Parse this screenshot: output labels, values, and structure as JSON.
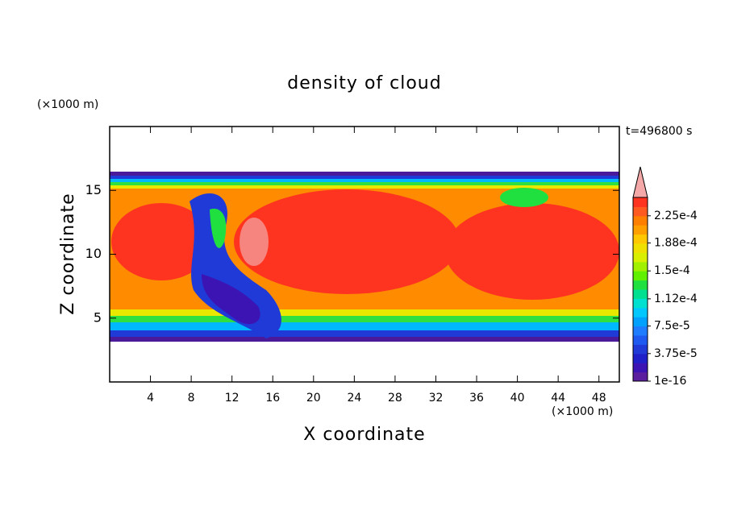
{
  "chart_data": {
    "type": "contour",
    "title": "density of cloud",
    "subtitle": "t=496800 s",
    "x_label": "X coordinate",
    "y_label": "Z coordinate",
    "x_unit": "(×1000 m)",
    "y_unit": "(×1000 m)",
    "xlim": [
      0,
      50
    ],
    "xticks": [
      4,
      8,
      12,
      16,
      20,
      24,
      28,
      32,
      36,
      40,
      44,
      48
    ],
    "ylim": [
      0,
      20
    ],
    "yticks": [
      5,
      10,
      15
    ],
    "colorbar": {
      "range": [
        0,
        0.00025
      ],
      "ticks": [
        {
          "value": 1e-16,
          "label": "1e-16"
        },
        {
          "value": 3.75e-05,
          "label": "3.75e-5"
        },
        {
          "value": 7.5e-05,
          "label": "7.5e-5"
        },
        {
          "value": 0.000112,
          "label": "1.12e-4"
        },
        {
          "value": 0.00015,
          "label": "1.5e-4"
        },
        {
          "value": 0.000188,
          "label": "1.88e-4"
        },
        {
          "value": 0.000225,
          "label": "2.25e-4"
        }
      ],
      "colors": [
        "#5a1e9e",
        "#3c14b4",
        "#2020c8",
        "#1f3ad6",
        "#1e5af0",
        "#1e7cff",
        "#00a0ff",
        "#00c8ff",
        "#00e0d0",
        "#00e090",
        "#20e040",
        "#60f000",
        "#a0f000",
        "#d8f000",
        "#f0e000",
        "#ffc800",
        "#ffa000",
        "#ff8000",
        "#ff5a20",
        "#ff3420"
      ],
      "extend_color": "#f4a8a8"
    }
  }
}
